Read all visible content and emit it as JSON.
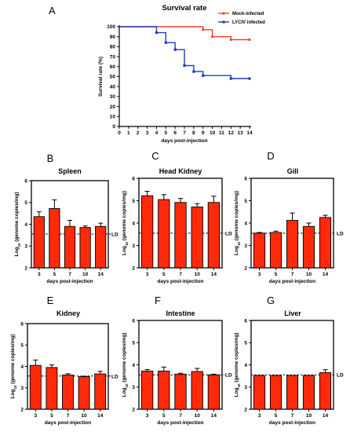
{
  "colors": {
    "red": "#ff2a0a",
    "mock_line": "#e8462a",
    "lcdv_line": "#1f3fb8",
    "axis": "#000000"
  },
  "chart_data": [
    {
      "panel": "A",
      "type": "line",
      "title": "Survival rate",
      "xlabel": "days post-injection",
      "ylabel": "Survival rate (%)",
      "xlim": [
        0,
        14
      ],
      "ylim": [
        0,
        100
      ],
      "xticks": [
        "0",
        "1",
        "2",
        "3",
        "4",
        "5",
        "6",
        "7",
        "8",
        "9",
        "10",
        "11",
        "12",
        "13",
        "14"
      ],
      "yticks": [
        "0",
        "10",
        "20",
        "30",
        "40",
        "50",
        "60",
        "70",
        "80",
        "90",
        "100"
      ],
      "legend_position": "top-right",
      "series": [
        {
          "name": "Mock-infected",
          "color": "#e8462a",
          "marker": "circle",
          "steps": [
            [
              0,
              100
            ],
            [
              9,
              100
            ],
            [
              9,
              97
            ],
            [
              10,
              97
            ],
            [
              10,
              90
            ],
            [
              12,
              90
            ],
            [
              12,
              87
            ],
            [
              14,
              87
            ]
          ],
          "markers": [
            [
              9,
              97
            ],
            [
              10,
              90
            ],
            [
              12,
              87
            ],
            [
              14,
              87
            ]
          ]
        },
        {
          "name": "LYCIV infected",
          "color": "#1f3fb8",
          "marker": "square",
          "steps": [
            [
              0,
              100
            ],
            [
              4,
              100
            ],
            [
              4,
              94
            ],
            [
              5,
              94
            ],
            [
              5,
              84
            ],
            [
              6,
              84
            ],
            [
              6,
              77
            ],
            [
              7,
              77
            ],
            [
              7,
              61
            ],
            [
              8,
              61
            ],
            [
              8,
              55
            ],
            [
              9,
              55
            ],
            [
              9,
              51
            ],
            [
              12,
              51
            ],
            [
              12,
              48
            ],
            [
              14,
              48
            ]
          ],
          "markers": [
            [
              4,
              94
            ],
            [
              5,
              84
            ],
            [
              6,
              77
            ],
            [
              7,
              61
            ],
            [
              8,
              55
            ],
            [
              9,
              51
            ],
            [
              12,
              48
            ],
            [
              14,
              48
            ]
          ]
        }
      ]
    },
    {
      "panel": "B",
      "type": "bar",
      "title": "Spleen",
      "categories": [
        "3",
        "5",
        "7",
        "10",
        "14"
      ],
      "values": [
        4.35,
        4.72,
        3.9,
        3.85,
        3.9
      ],
      "errors": [
        0.22,
        0.4,
        0.28,
        0.07,
        0.15
      ],
      "xlabel": "days post-injection",
      "ylabel": "Log10 (genome copies/mg)",
      "ylim": [
        2,
        6
      ],
      "yticks": [
        "2",
        "3",
        "4",
        "5",
        "6"
      ],
      "ld": 3.55,
      "ld_label": "LD"
    },
    {
      "panel": "C",
      "type": "bar",
      "title": "Head Kidney",
      "categories": [
        "3",
        "5",
        "7",
        "10",
        "14"
      ],
      "values": [
        5.22,
        5.05,
        4.92,
        4.72,
        4.92
      ],
      "errors": [
        0.2,
        0.22,
        0.18,
        0.15,
        0.28
      ],
      "xlabel": "days post-injection",
      "ylabel": "Log10 (genome copies/mg)",
      "ylim": [
        2,
        6
      ],
      "yticks": [
        "2",
        "3",
        "4",
        "5",
        "6"
      ],
      "ld": 3.55,
      "ld_label": "LD"
    },
    {
      "panel": "D",
      "type": "bar",
      "title": "Gill",
      "categories": [
        "3",
        "5",
        "7",
        "10",
        "14"
      ],
      "values": [
        3.55,
        3.58,
        4.12,
        3.85,
        4.25
      ],
      "errors": [
        0.03,
        0.06,
        0.33,
        0.15,
        0.1
      ],
      "xlabel": "days post-injection",
      "ylabel": "Log10 (genome copies/mg)",
      "ylim": [
        2,
        6
      ],
      "yticks": [
        "2",
        "3",
        "4",
        "5",
        "6"
      ],
      "ld": 3.55,
      "ld_label": "LD"
    },
    {
      "panel": "E",
      "type": "bar",
      "title": "Kidney",
      "categories": [
        "3",
        "5",
        "7",
        "10",
        "14"
      ],
      "values": [
        4.05,
        3.95,
        3.6,
        3.52,
        3.65
      ],
      "errors": [
        0.25,
        0.12,
        0.06,
        0.02,
        0.12
      ],
      "xlabel": "days post-injection",
      "ylabel": "Log10 (genome copies/mg)",
      "ylim": [
        2,
        6
      ],
      "yticks": [
        "2",
        "3",
        "4",
        "5",
        "6"
      ],
      "ld": 3.55,
      "ld_label": "LD"
    },
    {
      "panel": "F",
      "type": "bar",
      "title": "Intestine",
      "categories": [
        "3",
        "5",
        "7",
        "10",
        "14"
      ],
      "values": [
        3.72,
        3.72,
        3.58,
        3.7,
        3.55
      ],
      "errors": [
        0.07,
        0.18,
        0.04,
        0.14,
        0.03
      ],
      "xlabel": "days post-injection",
      "ylabel": "Log10 (genome copies/mg)",
      "ylim": [
        2,
        6
      ],
      "yticks": [
        "2",
        "3",
        "4",
        "5",
        "6"
      ],
      "ld": 3.55,
      "ld_label": "LD"
    },
    {
      "panel": "G",
      "type": "bar",
      "title": "Liver",
      "categories": [
        "3",
        "5",
        "7",
        "10",
        "14"
      ],
      "values": [
        3.52,
        3.52,
        3.52,
        3.52,
        3.65
      ],
      "errors": [
        0.0,
        0.0,
        0.0,
        0.0,
        0.13
      ],
      "xlabel": "days post-injection",
      "ylabel": "Log10 (genome copies/mg)",
      "ylim": [
        2,
        6
      ],
      "yticks": [
        "2",
        "3",
        "4",
        "5",
        "6"
      ],
      "ld": 3.55,
      "ld_label": "LD"
    }
  ]
}
